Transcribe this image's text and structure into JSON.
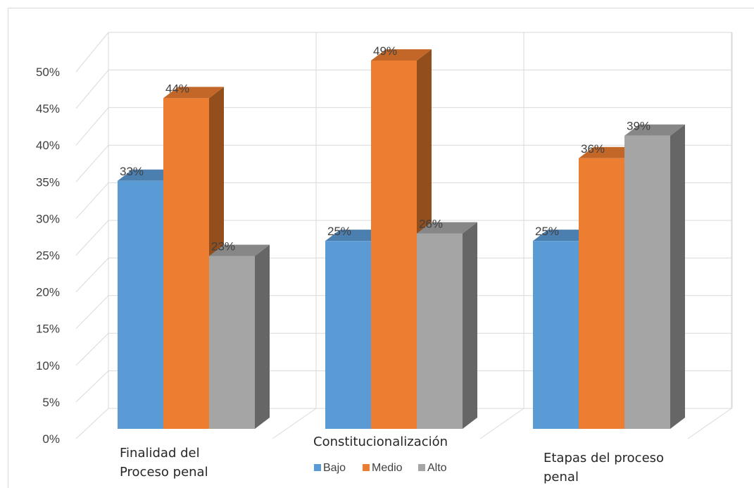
{
  "chart_data": {
    "type": "bar",
    "title": "",
    "xlabel": "",
    "ylabel": "",
    "categories": [
      [
        "Finalidad del",
        "Proceso penal"
      ],
      [
        "Constitucionalización"
      ],
      [
        "Etapas del proceso",
        "penal"
      ]
    ],
    "series": [
      {
        "name": "Bajo",
        "values": [
          33,
          25,
          25
        ],
        "labels": [
          "33%",
          "25%",
          "25%"
        ],
        "color": "#5b9bd5"
      },
      {
        "name": "Medio",
        "values": [
          44,
          49,
          36
        ],
        "labels": [
          "44%",
          "49%",
          "36%"
        ],
        "color": "#ed7d31"
      },
      {
        "name": "Alto",
        "values": [
          23,
          26,
          39
        ],
        "labels": [
          "23%",
          "26%",
          "39%"
        ],
        "color": "#a5a5a5"
      }
    ],
    "ylim": [
      0,
      50
    ],
    "yticks": [
      0,
      5,
      10,
      15,
      20,
      25,
      30,
      35,
      40,
      45,
      50
    ],
    "ytick_labels": [
      "0%",
      "5%",
      "10%",
      "15%",
      "20%",
      "25%",
      "30%",
      "35%",
      "40%",
      "45%",
      "50%"
    ],
    "grid": true,
    "legend_position": "bottom",
    "style": "3d-clustered-column"
  }
}
